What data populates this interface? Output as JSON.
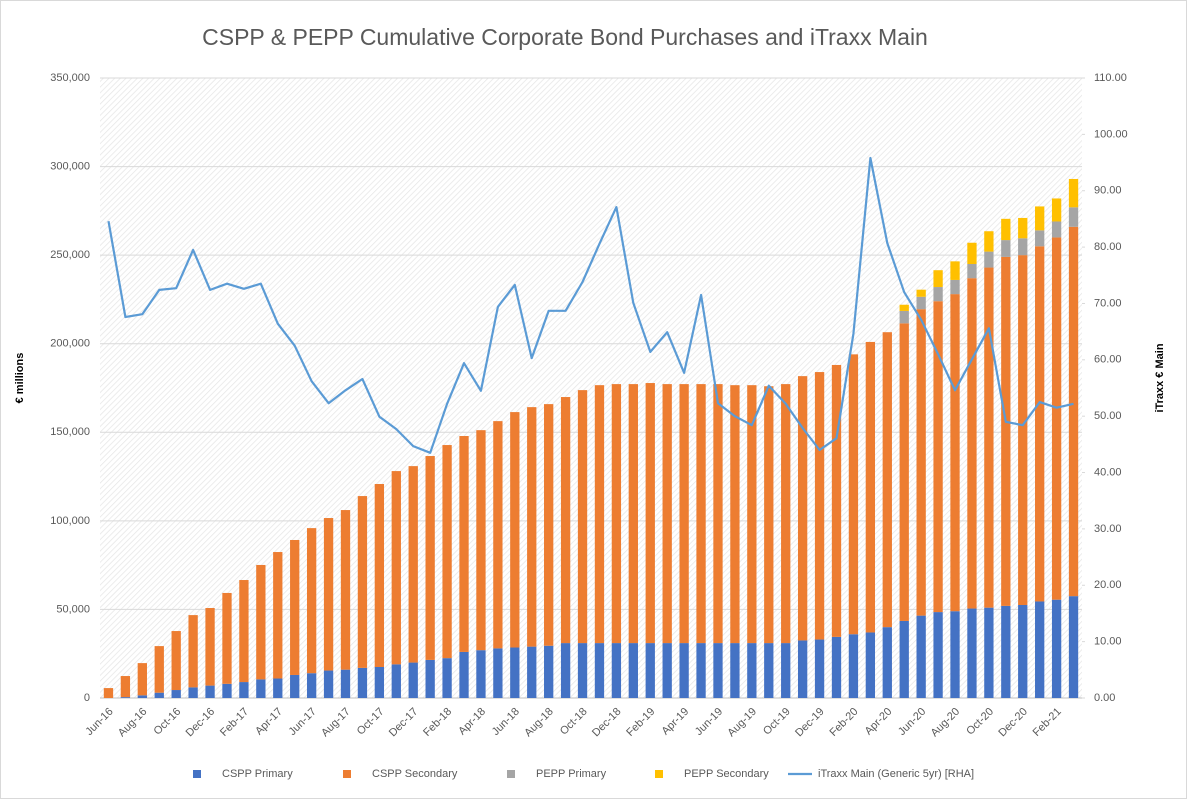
{
  "chart_data": {
    "type": "bar",
    "stacked": true,
    "title": "CSPP & PEPP Cumulative Corporate Bond Purchases and iTraxx Main",
    "y_label": "€ millions",
    "y2_label": "iTraxx € Main",
    "legend": "bottom",
    "grid": true,
    "categories": [
      "Jun-16",
      null,
      "Aug-16",
      null,
      "Oct-16",
      null,
      "Dec-16",
      null,
      "Feb-17",
      null,
      "Apr-17",
      null,
      "Jun-17",
      null,
      "Aug-17",
      null,
      "Oct-17",
      null,
      "Dec-17",
      null,
      "Feb-18",
      null,
      "Apr-18",
      null,
      "Jun-18",
      null,
      "Aug-18",
      null,
      "Oct-18",
      null,
      "Dec-18",
      null,
      "Feb-19",
      null,
      "Apr-19",
      null,
      "Jun-19",
      null,
      "Aug-19",
      null,
      "Oct-19",
      null,
      "Dec-19",
      null,
      "Feb-20",
      null,
      "Apr-20",
      null,
      "Jun-20",
      null,
      "Aug-20",
      null,
      "Oct-20",
      null,
      "Dec-20",
      null,
      "Feb-21",
      null
    ],
    "ylim": [
      0,
      350000
    ],
    "yticks": [
      0,
      {
        "value": 50000,
        "label": "50,000"
      },
      {
        "value": 100000,
        "label": "100,000"
      },
      {
        "value": 150000,
        "label": "150,000"
      },
      {
        "value": 200000,
        "label": "200,000"
      },
      {
        "value": 250000,
        "label": "250,000"
      },
      {
        "value": 300000,
        "label": "300,000"
      },
      {
        "value": 350000,
        "label": "350,000"
      }
    ],
    "y2lim": [
      0,
      110
    ],
    "y2ticks": [
      {
        "value": 0,
        "label": "0.00"
      },
      {
        "value": 10,
        "label": "10.00"
      },
      {
        "value": 20,
        "label": "20.00"
      },
      {
        "value": 30,
        "label": "30.00"
      },
      {
        "value": 40,
        "label": "40.00"
      },
      {
        "value": 50,
        "label": "50.00"
      },
      {
        "value": 60,
        "label": "60.00"
      },
      {
        "value": 70,
        "label": "70.00"
      },
      {
        "value": 80,
        "label": "80.00"
      },
      {
        "value": 90,
        "label": "90.00"
      },
      {
        "value": 100,
        "label": "100.00"
      },
      {
        "value": 110,
        "label": "110.00"
      }
    ],
    "series": [
      {
        "name": "CSPP Primary",
        "color": "#4472c4",
        "values": [
          0,
          500,
          1500,
          3000,
          4500,
          6000,
          7000,
          8000,
          9000,
          10500,
          11000,
          13000,
          14000,
          15500,
          16000,
          17000,
          17500,
          19000,
          20000,
          21500,
          22500,
          26000,
          27000,
          28000,
          28500,
          29000,
          29500,
          31000,
          31000,
          31000,
          31000,
          31000,
          31000,
          31000,
          31000,
          31000,
          31000,
          31000,
          31000,
          31000,
          31000,
          32500,
          33000,
          34500,
          36000,
          37000,
          40000,
          43500,
          46500,
          48500,
          49000,
          50500,
          51000,
          52000,
          52500,
          54500,
          55500,
          57500
        ]
      },
      {
        "name": "CSPP Secondary",
        "color": "#ed7d31",
        "values": [
          5600,
          11900,
          18200,
          26300,
          33300,
          40800,
          43800,
          51300,
          57600,
          64600,
          71400,
          76200,
          81900,
          86100,
          90100,
          97000,
          103300,
          109100,
          110900,
          115100,
          120300,
          121900,
          124200,
          128300,
          132900,
          135200,
          136400,
          138900,
          142800,
          145600,
          146200,
          146200,
          146800,
          146200,
          146200,
          146200,
          146200,
          145600,
          145600,
          145000,
          146200,
          149200,
          151000,
          153500,
          158000,
          164000,
          166500,
          168000,
          173000,
          175500,
          179000,
          186500,
          192000,
          197000,
          197500,
          200500,
          204500,
          208500
        ]
      },
      {
        "name": "PEPP Primary",
        "color": "#a5a5a5",
        "values": [
          null,
          null,
          null,
          null,
          null,
          null,
          null,
          null,
          null,
          null,
          null,
          null,
          null,
          null,
          null,
          null,
          null,
          null,
          null,
          null,
          null,
          null,
          null,
          null,
          null,
          null,
          null,
          null,
          null,
          null,
          null,
          null,
          null,
          null,
          null,
          null,
          null,
          null,
          null,
          null,
          null,
          null,
          null,
          null,
          null,
          null,
          null,
          7000,
          7000,
          8000,
          8000,
          8000,
          9000,
          9500,
          9500,
          9000,
          9000,
          11000
        ]
      },
      {
        "name": "PEPP Secondary",
        "color": "#ffc000",
        "values": [
          null,
          null,
          null,
          null,
          null,
          null,
          null,
          null,
          null,
          null,
          null,
          null,
          null,
          null,
          null,
          null,
          null,
          null,
          null,
          null,
          null,
          null,
          null,
          null,
          null,
          null,
          null,
          null,
          null,
          null,
          null,
          null,
          null,
          null,
          null,
          null,
          null,
          null,
          null,
          null,
          null,
          null,
          null,
          null,
          null,
          null,
          null,
          3500,
          4000,
          9500,
          10500,
          12000,
          11500,
          12000,
          11500,
          13500,
          13000,
          16000
        ]
      },
      {
        "name": "iTraxx Main (Generic 5yr) [RHA]",
        "color": "#5b9bd5",
        "type": "line",
        "axis": "y2",
        "values": [
          84.6,
          67.6,
          68.1,
          72.4,
          72.7,
          79.5,
          72.4,
          73.5,
          72.6,
          73.5,
          66.4,
          62.5,
          56.2,
          52.3,
          54.6,
          56.6,
          49.9,
          47.7,
          44.7,
          43.5,
          52.2,
          59.4,
          54.5,
          69.4,
          73.3,
          60.3,
          68.7,
          68.7,
          73.8,
          80.6,
          87.1,
          70.1,
          61.4,
          64.9,
          57.7,
          71.5,
          52.3,
          50.0,
          48.4,
          55.4,
          52.2,
          47.9,
          44.0,
          46.1,
          64.6,
          95.8,
          80.7,
          72.0,
          67.1,
          61.0,
          54.6,
          60.1,
          65.6,
          49.0,
          48.4,
          52.5,
          51.5,
          52.2
        ]
      }
    ]
  }
}
